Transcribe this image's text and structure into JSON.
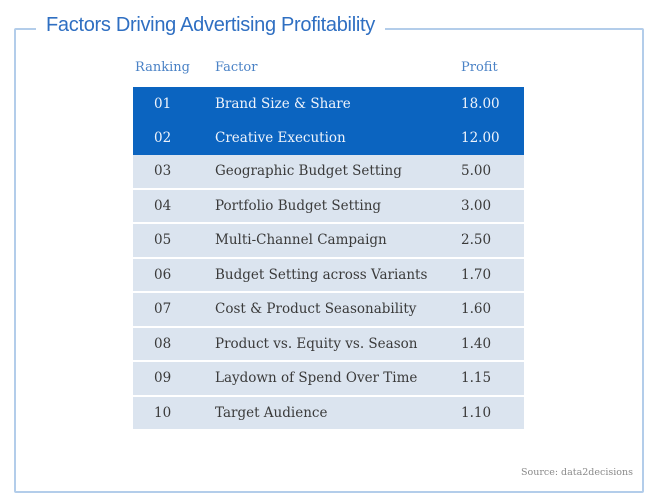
{
  "title": "Factors Driving Advertising Profitability",
  "headers": {
    "ranking": "Ranking",
    "factor": "Factor",
    "profit": "Profit"
  },
  "rows": [
    {
      "rank": "01",
      "factor": "Brand Size & Share",
      "profit": "18.00",
      "highlight": true
    },
    {
      "rank": "02",
      "factor": "Creative Execution",
      "profit": "12.00",
      "highlight": true
    },
    {
      "rank": "03",
      "factor": "Geographic Budget Setting",
      "profit": "5.00"
    },
    {
      "rank": "04",
      "factor": "Portfolio Budget Setting",
      "profit": "3.00"
    },
    {
      "rank": "05",
      "factor": "Multi-Channel Campaign",
      "profit": "2.50"
    },
    {
      "rank": "06",
      "factor": "Budget Setting across Variants",
      "profit": "1.70"
    },
    {
      "rank": "07",
      "factor": "Cost & Product Seasonability",
      "profit": "1.60"
    },
    {
      "rank": "08",
      "factor": "Product vs. Equity vs. Season",
      "profit": "1.40"
    },
    {
      "rank": "09",
      "factor": "Laydown of Spend Over Time",
      "profit": "1.15"
    },
    {
      "rank": "10",
      "factor": "Target Audience",
      "profit": "1.10"
    }
  ],
  "source": "Source: data2decisions",
  "colors": {
    "highlight": "#0b64c0",
    "row": "#dbe4ef",
    "title": "#2f6fc2"
  }
}
